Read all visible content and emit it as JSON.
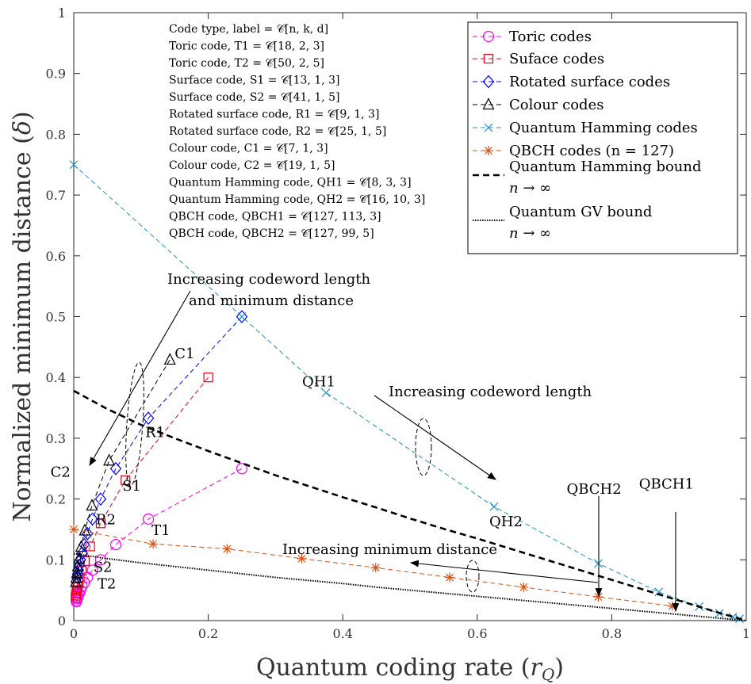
{
  "chart_data": {
    "type": "line",
    "xlabel": "Quantum coding rate (r_Q)",
    "ylabel": "Normalized minimum distance (δ)",
    "xlim": [
      0,
      1
    ],
    "ylim": [
      0,
      1
    ],
    "x_ticks": [
      "0",
      "0.2",
      "0.4",
      "0.6",
      "0.8",
      "1"
    ],
    "y_ticks": [
      "0",
      "0.1",
      "0.2",
      "0.3",
      "0.4",
      "0.5",
      "0.6",
      "0.7",
      "0.8",
      "0.9",
      "1"
    ],
    "x_tick_values": [
      0,
      0.2,
      0.4,
      0.6,
      0.8,
      1
    ],
    "y_tick_values": [
      0,
      0.1,
      0.2,
      0.3,
      0.4,
      0.5,
      0.6,
      0.7,
      0.8,
      0.9,
      1
    ],
    "grid": false,
    "legend_position": "top-right",
    "series": [
      {
        "name": "Toric codes",
        "color": "#ff00ff",
        "marker": "circle",
        "dash": "dashed",
        "x": [
          0.25,
          0.111,
          0.0625,
          0.04,
          0.0278,
          0.0204,
          0.0156,
          0.0123,
          0.01,
          0.0083,
          0.0069,
          0.0059,
          0.0051,
          0.0044,
          0.0039
        ],
        "y": [
          0.25,
          0.167,
          0.125,
          0.1,
          0.083,
          0.071,
          0.0625,
          0.056,
          0.05,
          0.045,
          0.042,
          0.038,
          0.036,
          0.033,
          0.031
        ]
      },
      {
        "name": "Suface codes",
        "color": "#e8001c",
        "marker": "square",
        "dash": "dashed",
        "x": [
          0.2,
          0.0769,
          0.04,
          0.0244,
          0.0164,
          0.0118,
          0.0089,
          0.0069,
          0.0055,
          0.0045,
          0.0038,
          0.0032,
          0.0027
        ],
        "y": [
          0.4,
          0.231,
          0.16,
          0.122,
          0.098,
          0.082,
          0.071,
          0.062,
          0.055,
          0.05,
          0.045,
          0.041,
          0.038
        ]
      },
      {
        "name": "Rotated surface codes",
        "color": "#0000ff",
        "marker": "diamond",
        "dash": "dashed",
        "x": [
          0.25,
          0.111,
          0.0625,
          0.04,
          0.0278,
          0.0204,
          0.0156,
          0.0123,
          0.01,
          0.0083,
          0.0069,
          0.0059,
          0.0051
        ],
        "y": [
          0.5,
          0.333,
          0.25,
          0.2,
          0.167,
          0.143,
          0.125,
          0.111,
          0.1,
          0.091,
          0.083,
          0.077,
          0.071
        ]
      },
      {
        "name": "Colour codes",
        "color": "#000000",
        "marker": "triangle",
        "dash": "dashed",
        "x": [
          0.143,
          0.0526,
          0.027,
          0.0164,
          0.011,
          0.0079,
          0.006,
          0.0047,
          0.0037,
          0.003
        ],
        "y": [
          0.429,
          0.263,
          0.189,
          0.148,
          0.121,
          0.102,
          0.089,
          0.078,
          0.07,
          0.063
        ]
      },
      {
        "name": "Quantum Hamming codes",
        "color": "#1f8fcc",
        "marker": "x",
        "dash": "dashed",
        "x": [
          0,
          0.25,
          0.375,
          0.625,
          0.78,
          0.87,
          0.93,
          0.96,
          0.98,
          0.99
        ],
        "y": [
          0.75,
          0.5,
          0.375,
          0.1875,
          0.094,
          0.047,
          0.023,
          0.012,
          0.006,
          0.003
        ]
      },
      {
        "name": "QBCH codes (n = 127)",
        "color": "#d95319",
        "marker": "asterisk",
        "dash": "dashed",
        "x": [
          0.0,
          0.118,
          0.228,
          0.339,
          0.449,
          0.559,
          0.669,
          0.78,
          0.89
        ],
        "y": [
          0.15,
          0.126,
          0.118,
          0.102,
          0.087,
          0.071,
          0.055,
          0.039,
          0.024
        ]
      },
      {
        "name": "Quantum Hamming bound n → ∞",
        "color": "#000000",
        "marker": "none",
        "dash": "bold-dashed",
        "x": [
          0,
          0.05,
          0.1,
          0.15,
          0.2,
          0.25,
          0.3,
          0.35,
          0.4,
          0.45,
          0.5,
          0.55,
          0.6,
          0.65,
          0.7,
          0.75,
          0.8,
          0.85,
          0.9,
          0.95,
          1
        ],
        "y": [
          0.378,
          0.348,
          0.322,
          0.3,
          0.279,
          0.259,
          0.239,
          0.221,
          0.203,
          0.186,
          0.168,
          0.151,
          0.135,
          0.118,
          0.101,
          0.084,
          0.067,
          0.05,
          0.033,
          0.016,
          0
        ]
      },
      {
        "name": "Quantum GV bound n → ∞",
        "color": "#000000",
        "marker": "none",
        "dash": "dotted",
        "x": [
          0,
          0.05,
          0.1,
          0.15,
          0.2,
          0.25,
          0.3,
          0.35,
          0.4,
          0.45,
          0.5,
          0.55,
          0.6,
          0.65,
          0.7,
          0.75,
          0.8,
          0.85,
          0.9,
          0.95,
          1
        ],
        "y": [
          0.11,
          0.102,
          0.095,
          0.089,
          0.083,
          0.077,
          0.071,
          0.066,
          0.061,
          0.055,
          0.05,
          0.045,
          0.04,
          0.035,
          0.03,
          0.025,
          0.02,
          0.015,
          0.01,
          0.005,
          0
        ]
      }
    ],
    "code_labels": [
      {
        "label": "T1",
        "x": 0.111,
        "y": 0.167
      },
      {
        "label": "T2",
        "x": 0.04,
        "y": 0.1
      },
      {
        "label": "S1",
        "x": 0.0769,
        "y": 0.231
      },
      {
        "label": "S2",
        "x": 0.0244,
        "y": 0.122
      },
      {
        "label": "R1",
        "x": 0.111,
        "y": 0.333
      },
      {
        "label": "R2",
        "x": 0.04,
        "y": 0.2
      },
      {
        "label": "C1",
        "x": 0.143,
        "y": 0.429
      },
      {
        "label": "C2",
        "x": 0.0526,
        "y": 0.263
      },
      {
        "label": "QH1",
        "x": 0.375,
        "y": 0.375
      },
      {
        "label": "QH2",
        "x": 0.625,
        "y": 0.1875
      },
      {
        "label": "QBCH2",
        "x": 0.78,
        "y": 0.039
      },
      {
        "label": "QBCH1",
        "x": 0.89,
        "y": 0.024
      }
    ],
    "annotations": [
      "Increasing codeword length",
      "and minimum distance",
      "Increasing codeword length",
      "Increasing minimum distance"
    ],
    "notes": [
      "Code type, label = 𝒞[n, k, d]",
      "Toric code, T1 = 𝒞[18, 2, 3]",
      "Toric code, T2 = 𝒞[50, 2, 5]",
      "Surface code, S1 = 𝒞[13, 1, 3]",
      "Surface code, S2 = 𝒞[41, 1, 5]",
      "Rotated surface code, R1 = 𝒞[9, 1, 3]",
      "Rotated surface code, R2 = 𝒞[25, 1, 5]",
      "Colour code, C1 = 𝒞[7, 1, 3]",
      "Colour code, C2 = 𝒞[19, 1, 5]",
      "Quantum Hamming code, QH1 = 𝒞[8, 3, 3]",
      "Quantum Hamming code, QH2 = 𝒞[16, 10, 3]",
      "QBCH code, QBCH1 = 𝒞[127, 113, 3]",
      "QBCH code, QBCH2 = 𝒞[127, 99, 5]"
    ]
  }
}
